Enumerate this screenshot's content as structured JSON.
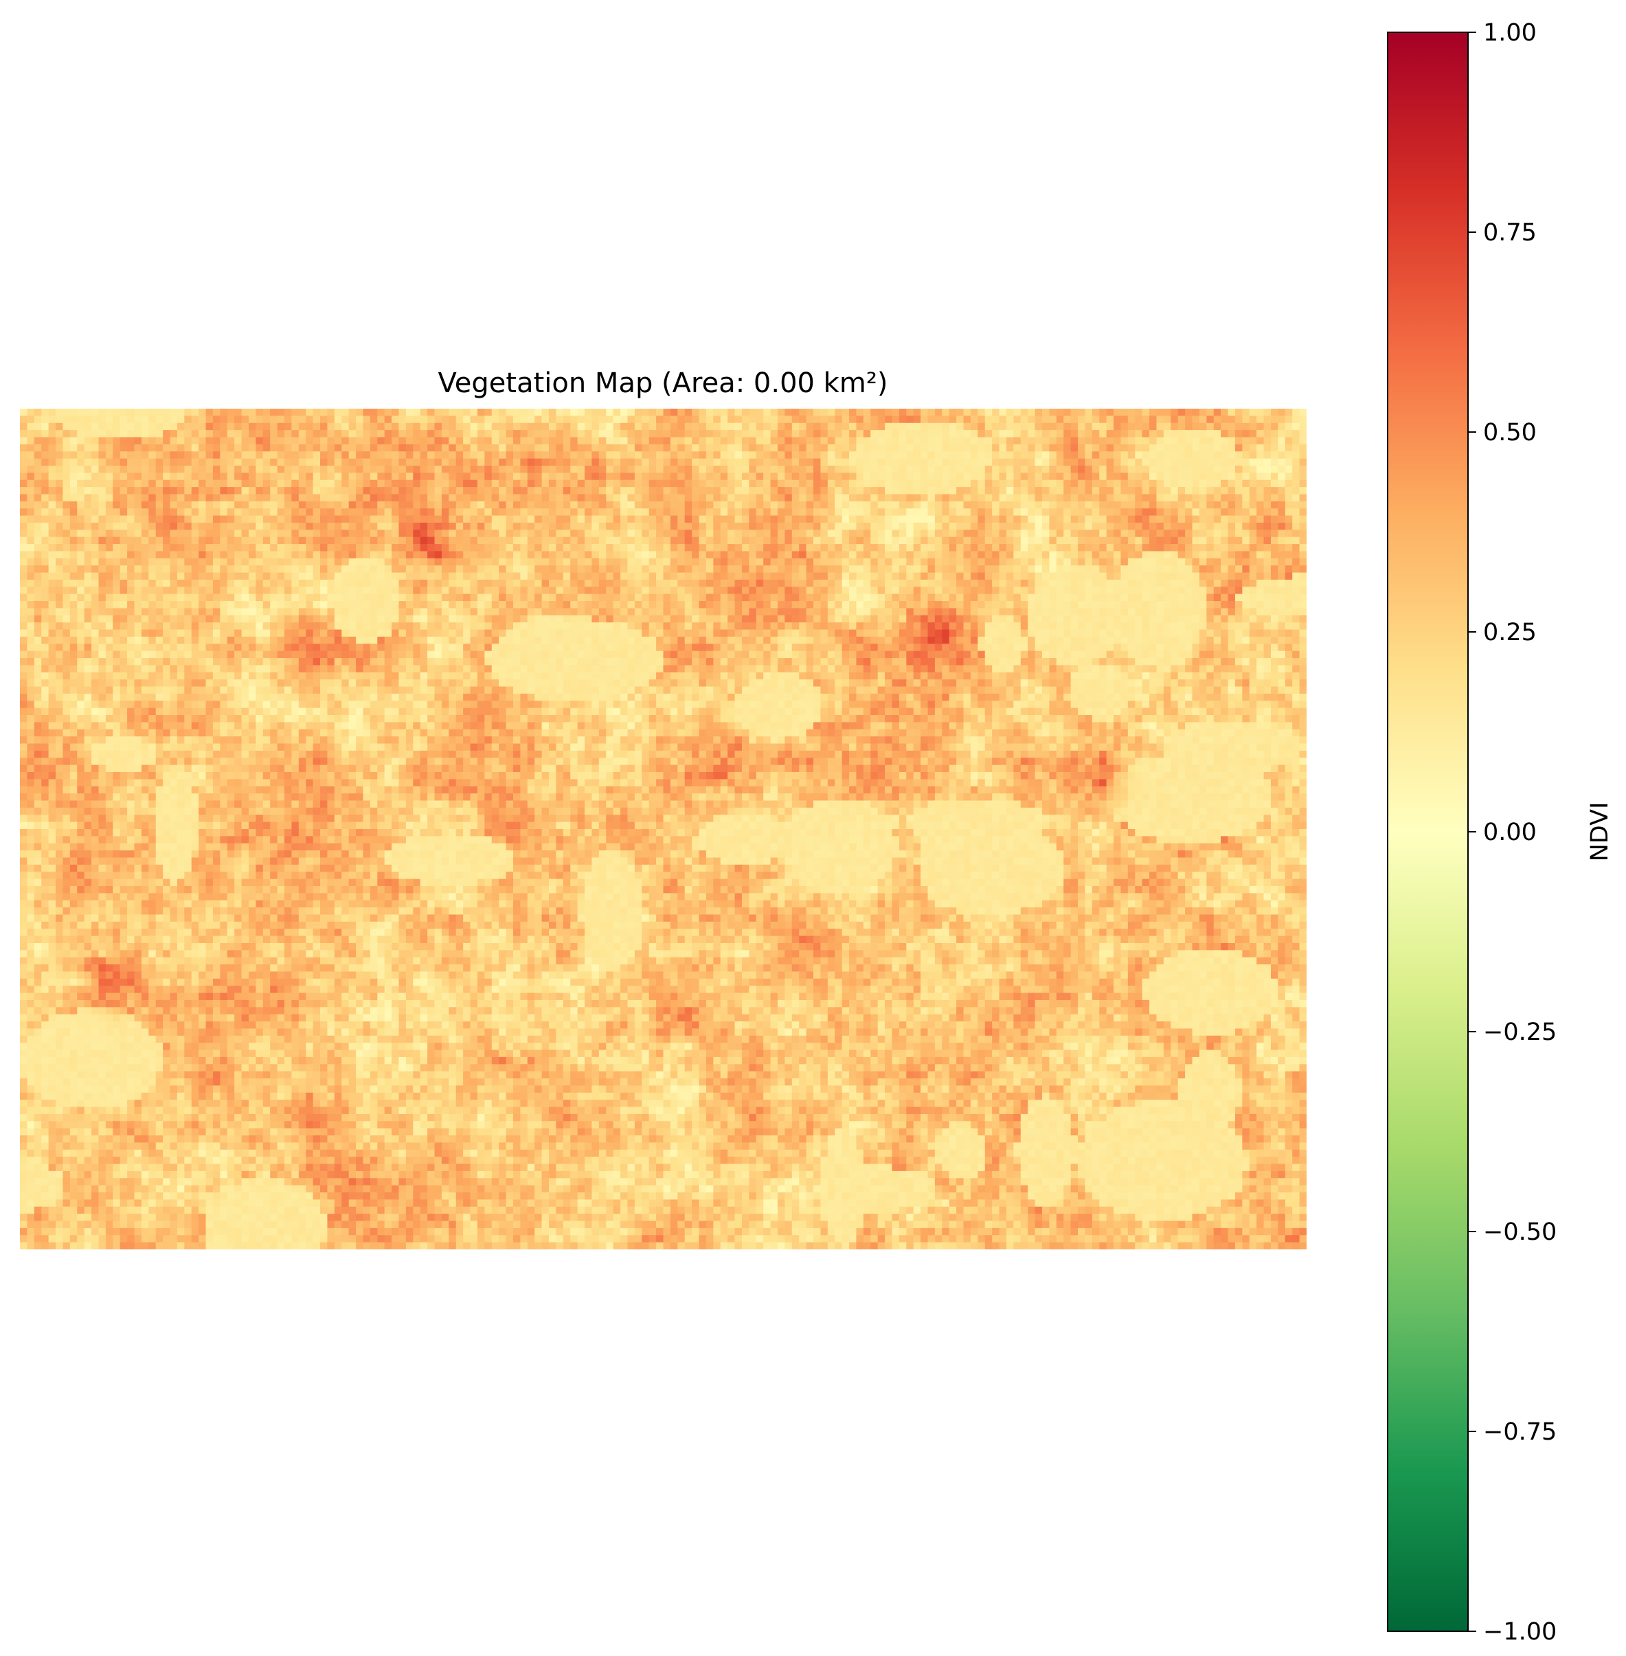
{
  "chart_data": {
    "type": "heatmap",
    "title": "Vegetation Map (Area: 0.00 km²)",
    "grid": false,
    "axes_visible": false,
    "colormap": {
      "name": "RdYlGn_r",
      "stops": [
        "#006837",
        "#1a9850",
        "#66bd63",
        "#a6d96a",
        "#d9ef8b",
        "#ffffbf",
        "#fee08b",
        "#fdae61",
        "#f46d43",
        "#d73027",
        "#a50026"
      ]
    },
    "colorbar": {
      "label": "NDVI",
      "range": [
        -1.0,
        1.0
      ],
      "ticks": [
        -1.0,
        -0.75,
        -0.5,
        -0.25,
        0.0,
        0.25,
        0.5,
        0.75,
        1.0
      ],
      "tick_labels": [
        "−1.00",
        "−0.75",
        "−0.50",
        "−0.25",
        "0.00",
        "0.25",
        "0.50",
        "0.75",
        "1.00"
      ]
    },
    "value_range_shown": [
      0.05,
      0.95
    ],
    "dominant_range": [
      0.1,
      0.6
    ]
  }
}
